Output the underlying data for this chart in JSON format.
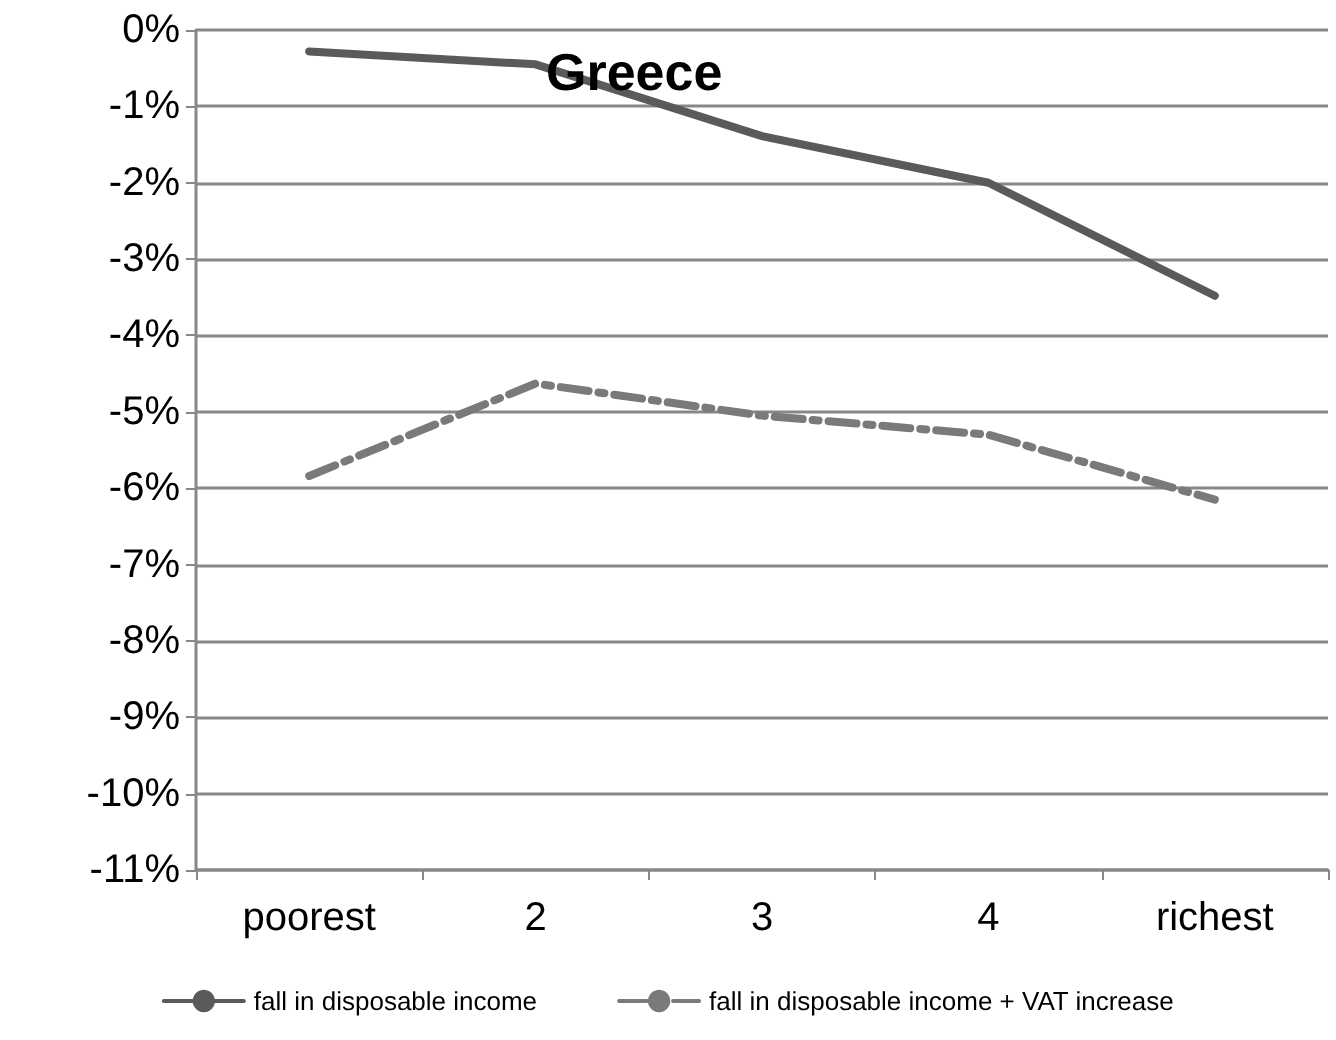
{
  "chart_data": {
    "type": "line",
    "title": "Greece",
    "categories": [
      "poorest",
      "2",
      "3",
      "4",
      "richest"
    ],
    "series": [
      {
        "name": "fall in disposable income",
        "color": "#5a5a5a",
        "line_style": "solid",
        "values": [
          -0.28,
          -0.45,
          -1.39,
          -2.0,
          -3.48
        ]
      },
      {
        "name": "fall in disposable income + VAT increase",
        "color": "#7a7a7a",
        "line_style": "dashed",
        "values": [
          -5.84,
          -4.63,
          -5.05,
          -5.3,
          -6.15
        ]
      }
    ],
    "ylim": [
      -11,
      0
    ],
    "yticks": [
      {
        "value": -11,
        "label": "-11%"
      },
      {
        "value": -10,
        "label": "-10%"
      },
      {
        "value": -9,
        "label": "-9%"
      },
      {
        "value": -8,
        "label": "-8%"
      },
      {
        "value": -7,
        "label": "-7%"
      },
      {
        "value": -6,
        "label": "-6%"
      },
      {
        "value": -5,
        "label": "-5%"
      },
      {
        "value": -4,
        "label": "-4%"
      },
      {
        "value": -3,
        "label": "-3%"
      },
      {
        "value": -2,
        "label": "-2%"
      },
      {
        "value": -1,
        "label": "-1%"
      },
      {
        "value": 0,
        "label": "0%"
      }
    ],
    "grid": "y",
    "legend": "bottom",
    "marker": "none"
  }
}
